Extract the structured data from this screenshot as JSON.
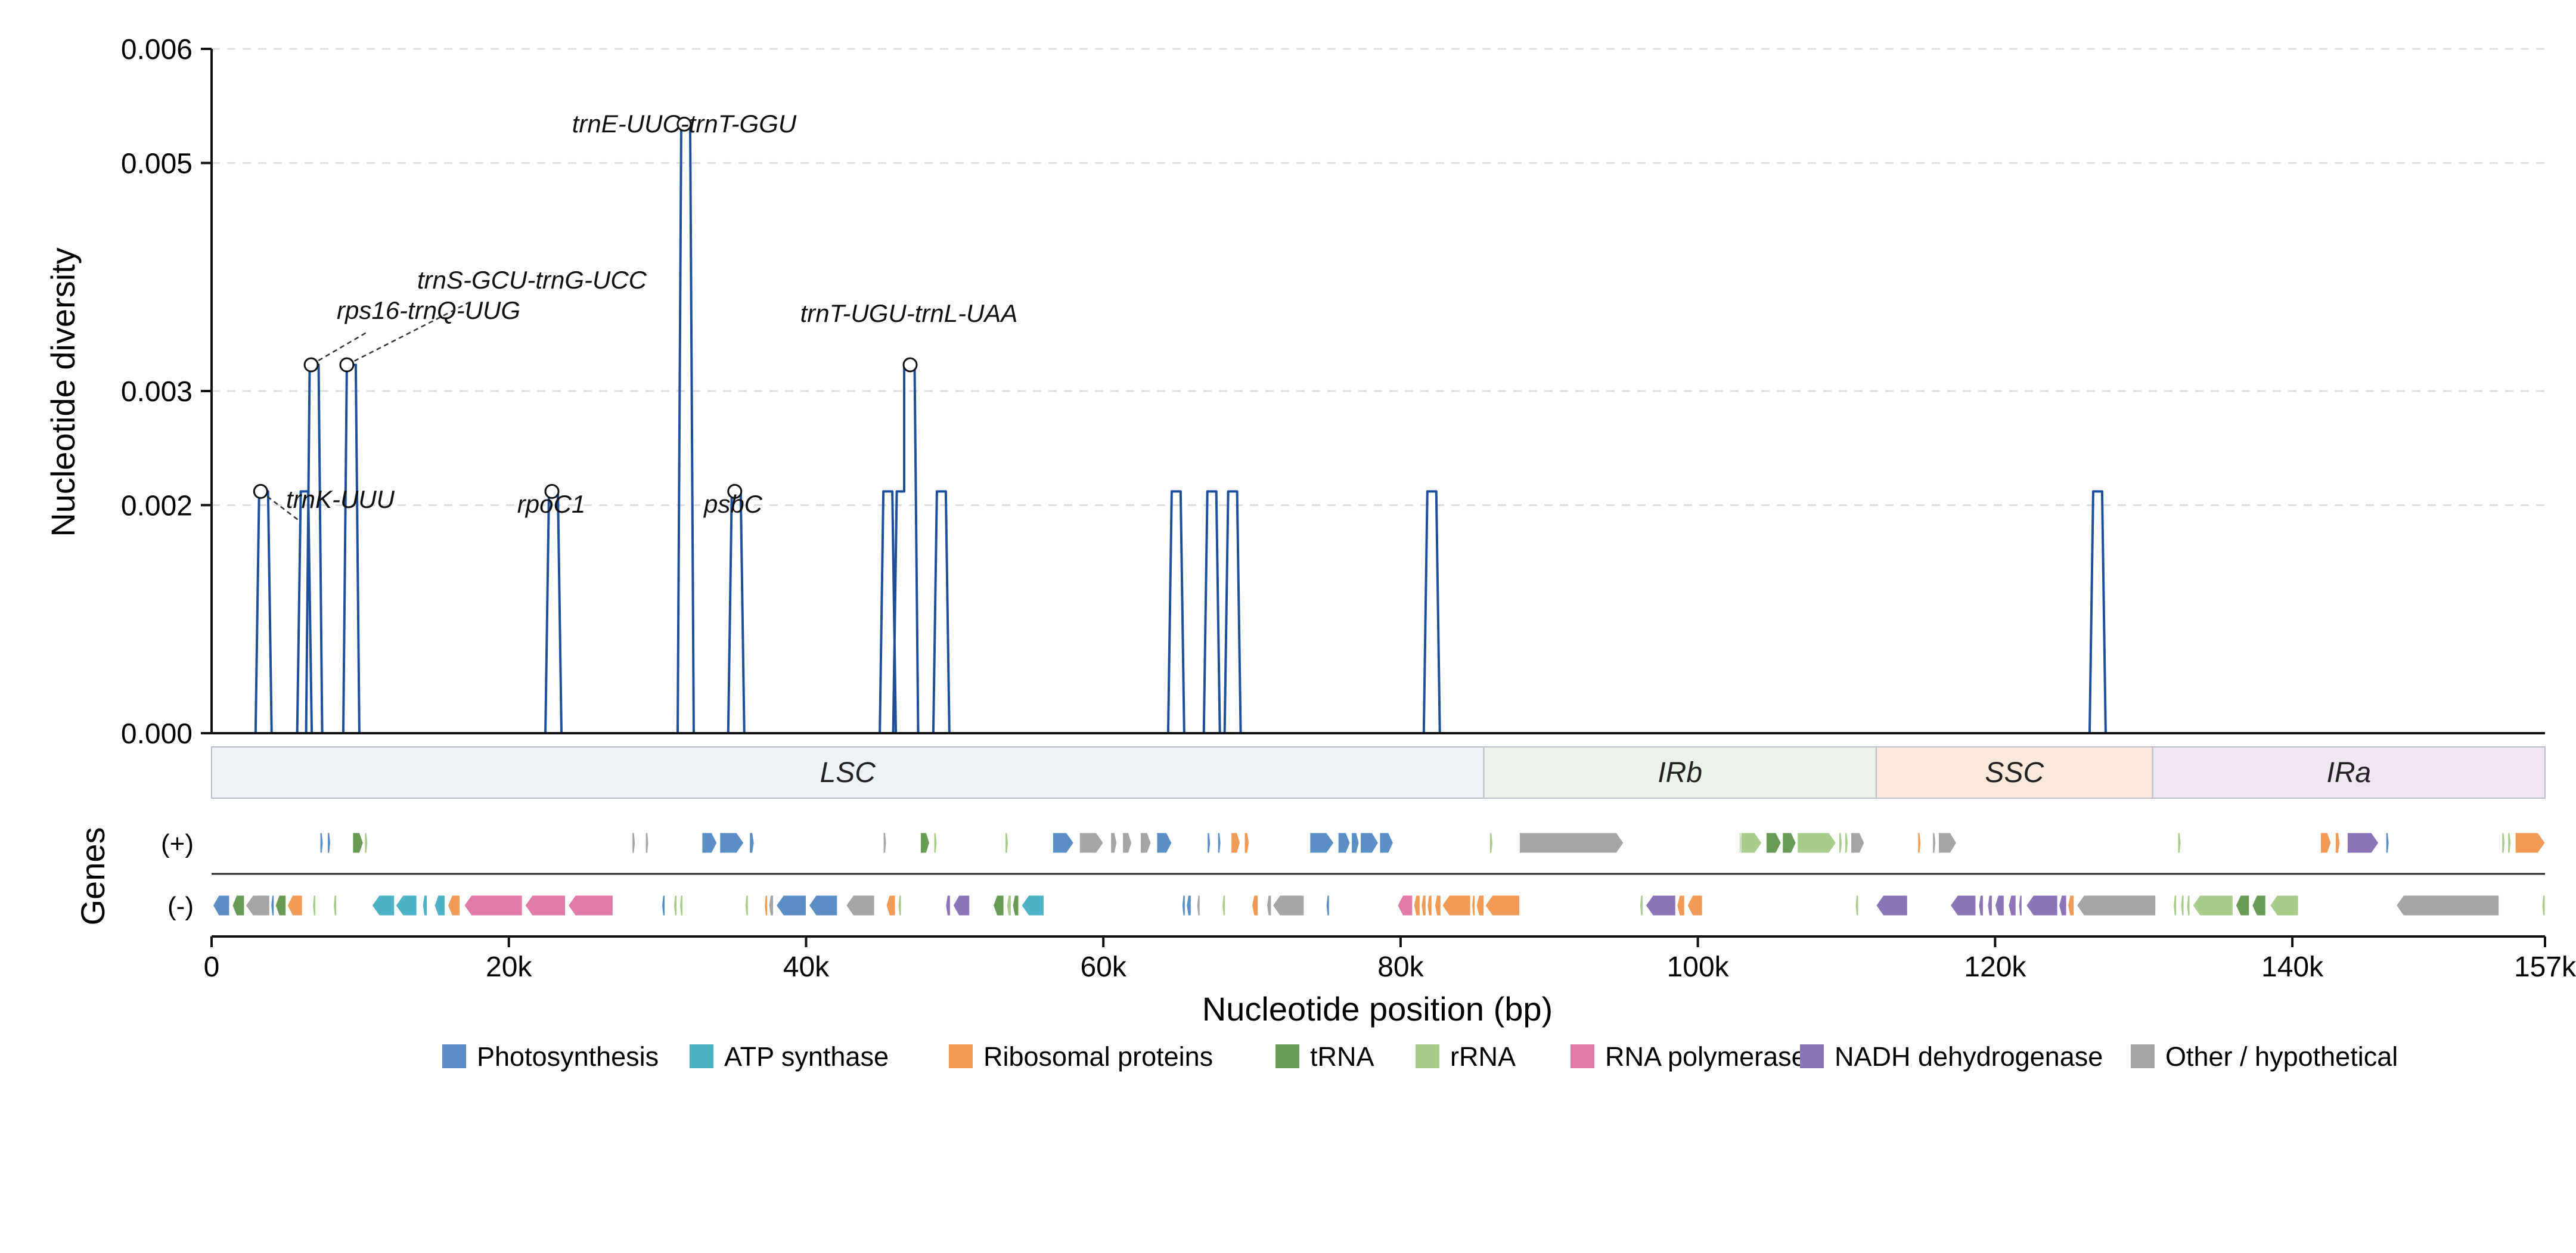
{
  "chart_data": {
    "type": "line",
    "xlabel": "Nucleotide position (bp)",
    "ylabel": "Nucleotide diversity",
    "xlim": [
      0,
      157000
    ],
    "ylim": [
      0,
      0.006
    ],
    "x_ticks": [
      0,
      20000,
      40000,
      60000,
      80000,
      100000,
      120000,
      140000,
      157000
    ],
    "x_tick_labels": [
      "0",
      "20k",
      "40k",
      "60k",
      "80k",
      "100k",
      "120k",
      "140k",
      "157k"
    ],
    "y_ticks": [
      0,
      0.002,
      0.003,
      0.005,
      0.006
    ],
    "y_tick_labels": [
      "0.000",
      "0.002",
      "0.003",
      "0.005",
      "0.006"
    ],
    "grid": "horizontal dashed",
    "series": [
      {
        "color": "#1f4e9c",
        "peaks": [
          {
            "start": 3200,
            "end": 3800,
            "value": 0.00212
          },
          {
            "start": 6000,
            "end": 6500,
            "value": 0.00212
          },
          {
            "start": 6600,
            "end": 7200,
            "value": 0.00323
          },
          {
            "start": 9100,
            "end": 9700,
            "value": 0.00323
          },
          {
            "start": 22700,
            "end": 23300,
            "value": 0.00212
          },
          {
            "start": 31600,
            "end": 32200,
            "value": 0.00534
          },
          {
            "start": 35000,
            "end": 35600,
            "value": 0.00212
          },
          {
            "start": 45200,
            "end": 45800,
            "value": 0.00212
          },
          {
            "start": 46100,
            "end": 46600,
            "value": 0.00212
          },
          {
            "start": 46600,
            "end": 47300,
            "value": 0.00323
          },
          {
            "start": 48800,
            "end": 49400,
            "value": 0.00212
          },
          {
            "start": 64600,
            "end": 65200,
            "value": 0.00212
          },
          {
            "start": 67000,
            "end": 67600,
            "value": 0.00212
          },
          {
            "start": 68400,
            "end": 69000,
            "value": 0.00212
          },
          {
            "start": 81800,
            "end": 82400,
            "value": 0.00212
          },
          {
            "start": 126600,
            "end": 127200,
            "value": 0.00212
          }
        ]
      }
    ],
    "annotations": [
      {
        "label": "trnK-UUU",
        "x": 3300,
        "y": 0.00212,
        "leader": true
      },
      {
        "label": "rps16-trnQ-UUG",
        "x": 6700,
        "y": 0.00323,
        "leader": true
      },
      {
        "label": "trnS-GCU-trnG-UCC",
        "x": 9100,
        "y": 0.00323,
        "leader": true
      },
      {
        "label": "rpoC1",
        "x": 22900,
        "y": 0.00212,
        "leader": false
      },
      {
        "label": "trnE-UUC-trnT-GGU",
        "x": 31800,
        "y": 0.00534,
        "leader": false
      },
      {
        "label": "psbC",
        "x": 35200,
        "y": 0.00212,
        "leader": false
      },
      {
        "label": "trnT-UGU-trnL-UAA",
        "x": 47000,
        "y": 0.00323,
        "leader": false
      }
    ],
    "regions": [
      {
        "label": "LSC",
        "start": 0,
        "end": 85600,
        "color": "#eef2f6"
      },
      {
        "label": "IRb",
        "start": 85600,
        "end": 112000,
        "color": "#ecf2ea"
      },
      {
        "label": "SSC",
        "start": 112000,
        "end": 130600,
        "color": "#f8e9dc"
      },
      {
        "label": "IRa",
        "start": 130600,
        "end": 157000,
        "color": "#f0e6f1"
      }
    ],
    "gene_track": {
      "title": "Genes",
      "strand_labels": [
        "(+)",
        "(-)"
      ],
      "categories": [
        {
          "name": "Photosynthesis",
          "color": "#5b8ec6"
        },
        {
          "name": "ATP synthase",
          "color": "#4cb2c4"
        },
        {
          "name": "Ribosomal proteins",
          "color": "#f09a56"
        },
        {
          "name": "tRNA",
          "color": "#6a9a58"
        },
        {
          "name": "rRNA",
          "color": "#a9cc8c"
        },
        {
          "name": "RNA polymerase",
          "color": "#e27aa8"
        },
        {
          "name": "NADH dehydrogenase",
          "color": "#8b74b7"
        },
        {
          "name": "Other / hypothetical",
          "color": "#a5a5a5"
        }
      ],
      "plus": [
        [
          7300,
          7500,
          0
        ],
        [
          7800,
          8000,
          0
        ],
        [
          9500,
          10200,
          3
        ],
        [
          10300,
          10500,
          4
        ],
        [
          28300,
          28500,
          7
        ],
        [
          29200,
          29400,
          7
        ],
        [
          33000,
          34000,
          0
        ],
        [
          34200,
          35800,
          0
        ],
        [
          36200,
          36500,
          0
        ],
        [
          45200,
          45400,
          7
        ],
        [
          47700,
          48300,
          3
        ],
        [
          48600,
          48800,
          4
        ],
        [
          53400,
          53600,
          4
        ],
        [
          56600,
          58000,
          0
        ],
        [
          58400,
          60000,
          7
        ],
        [
          60500,
          60900,
          7
        ],
        [
          61300,
          61900,
          7
        ],
        [
          62500,
          63200,
          7
        ],
        [
          63600,
          64600,
          0
        ],
        [
          67000,
          67200,
          0
        ],
        [
          67700,
          67900,
          0
        ],
        [
          68600,
          69200,
          2
        ],
        [
          69500,
          69800,
          2
        ],
        [
          73900,
          75500,
          0
        ],
        [
          75800,
          76600,
          0
        ],
        [
          76700,
          77200,
          0
        ],
        [
          77300,
          78500,
          0
        ],
        [
          78600,
          79500,
          0
        ],
        [
          86000,
          86200,
          4
        ],
        [
          88000,
          95000,
          7
        ],
        [
          102800,
          102900,
          4
        ],
        [
          102900,
          104300,
          4
        ],
        [
          104600,
          105600,
          3
        ],
        [
          105700,
          106600,
          3
        ],
        [
          106700,
          109300,
          4
        ],
        [
          109500,
          109700,
          4
        ],
        [
          109900,
          110100,
          4
        ],
        [
          110300,
          111200,
          7
        ],
        [
          114800,
          115000,
          2
        ],
        [
          115800,
          116000,
          7
        ],
        [
          116200,
          117400,
          7
        ],
        [
          132300,
          132500,
          4
        ],
        [
          141900,
          142600,
          2
        ],
        [
          142900,
          143200,
          2
        ],
        [
          143700,
          145800,
          6
        ],
        [
          146300,
          146500,
          0
        ],
        [
          154100,
          154300,
          4
        ],
        [
          154500,
          154700,
          4
        ],
        [
          155000,
          157000,
          2
        ]
      ],
      "minus": [
        [
          100,
          1200,
          0
        ],
        [
          1400,
          2200,
          3
        ],
        [
          2300,
          3900,
          7
        ],
        [
          4000,
          4200,
          0
        ],
        [
          4300,
          5000,
          3
        ],
        [
          5100,
          6100,
          2
        ],
        [
          6800,
          7000,
          4
        ],
        [
          8200,
          8400,
          4
        ],
        [
          10800,
          12300,
          1
        ],
        [
          12400,
          13800,
          1
        ],
        [
          14200,
          14500,
          1
        ],
        [
          15000,
          15700,
          1
        ],
        [
          15900,
          16700,
          2
        ],
        [
          17000,
          20900,
          5
        ],
        [
          21100,
          23800,
          5
        ],
        [
          24000,
          27000,
          5
        ],
        [
          30300,
          30500,
          0
        ],
        [
          31100,
          31300,
          4
        ],
        [
          31500,
          31700,
          4
        ],
        [
          35900,
          36100,
          4
        ],
        [
          37200,
          37400,
          2
        ],
        [
          37500,
          37800,
          7
        ],
        [
          38000,
          40000,
          0
        ],
        [
          40200,
          42100,
          0
        ],
        [
          42700,
          44600,
          7
        ],
        [
          45400,
          46000,
          2
        ],
        [
          46200,
          46400,
          4
        ],
        [
          49400,
          49700,
          6
        ],
        [
          49900,
          51000,
          6
        ],
        [
          52600,
          53300,
          3
        ],
        [
          53500,
          53800,
          4
        ],
        [
          53900,
          54300,
          3
        ],
        [
          54500,
          56000,
          1
        ],
        [
          65300,
          65500,
          0
        ],
        [
          65600,
          65900,
          0
        ],
        [
          66300,
          66500,
          7
        ],
        [
          68000,
          68200,
          4
        ],
        [
          70000,
          70400,
          2
        ],
        [
          71000,
          71300,
          7
        ],
        [
          71400,
          73500,
          7
        ],
        [
          75000,
          75200,
          0
        ],
        [
          79800,
          80800,
          5
        ],
        [
          80900,
          81300,
          2
        ],
        [
          81400,
          81700,
          2
        ],
        [
          81800,
          82100,
          2
        ],
        [
          82300,
          82700,
          2
        ],
        [
          82800,
          84700,
          2
        ],
        [
          84800,
          85000,
          2
        ],
        [
          85100,
          85600,
          2
        ],
        [
          85700,
          88000,
          2
        ],
        [
          96100,
          96300,
          4
        ],
        [
          96500,
          98500,
          6
        ],
        [
          98600,
          99100,
          2
        ],
        [
          99300,
          100300,
          2
        ],
        [
          110600,
          110800,
          4
        ],
        [
          112000,
          114100,
          6
        ],
        [
          117000,
          118700,
          6
        ],
        [
          118900,
          119200,
          6
        ],
        [
          119500,
          119800,
          6
        ],
        [
          120000,
          120600,
          6
        ],
        [
          120900,
          121400,
          6
        ],
        [
          121600,
          121800,
          6
        ],
        [
          122100,
          124200,
          6
        ],
        [
          124300,
          124800,
          6
        ],
        [
          124900,
          125300,
          2
        ],
        [
          125500,
          130800,
          7
        ],
        [
          132000,
          132200,
          4
        ],
        [
          132500,
          132700,
          4
        ],
        [
          132900,
          133100,
          4
        ],
        [
          133300,
          136000,
          4
        ],
        [
          136200,
          137100,
          3
        ],
        [
          137300,
          138200,
          3
        ],
        [
          138500,
          140400,
          4
        ],
        [
          147000,
          153900,
          7
        ],
        [
          156800,
          157000,
          4
        ]
      ]
    },
    "legend_position": "bottom-center"
  }
}
